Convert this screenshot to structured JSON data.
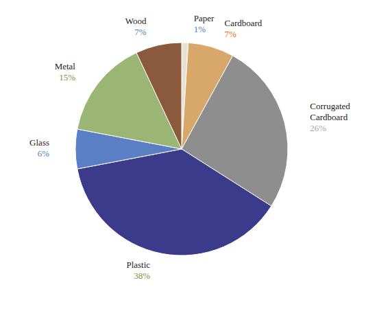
{
  "chart_data": {
    "type": "pie",
    "categories": [
      "Paper",
      "Cardboard",
      "Corrugated Cardboard",
      "Plastic",
      "Glass",
      "Metal",
      "Wood"
    ],
    "values": [
      1,
      7,
      26,
      38,
      6,
      15,
      7
    ],
    "value_labels": [
      "1%",
      "7%",
      "26%",
      "38%",
      "6%",
      "15%",
      "7%"
    ],
    "colors": [
      "#e9e2d4",
      "#d8a86a",
      "#8e8e8e",
      "#3c3a8a",
      "#5b7fc4",
      "#9bb574",
      "#8b5a3c"
    ],
    "data_labels": true
  }
}
